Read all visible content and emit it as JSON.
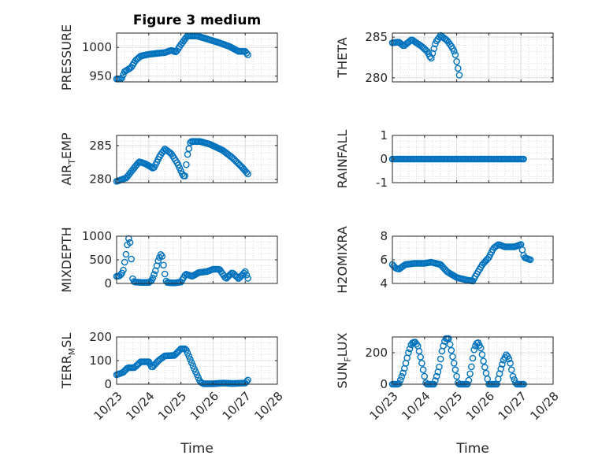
{
  "figure": {
    "title": "Figure 3 medium",
    "xlabel": "Time",
    "marker_color": "#0072BD",
    "xticks": [
      {
        "value": 0,
        "label": "10/23"
      },
      {
        "value": 1,
        "label": "10/24"
      },
      {
        "value": 2,
        "label": "10/25"
      },
      {
        "value": 3,
        "label": "10/26"
      },
      {
        "value": 4,
        "label": "10/27"
      },
      {
        "value": 5,
        "label": "10/28"
      }
    ]
  },
  "chart_data": [
    {
      "type": "scatter",
      "ylabel": "PRESSURE",
      "ylim": [
        940,
        1025
      ],
      "yticks": [
        950,
        1000
      ],
      "x_ticklabels_shown": false,
      "title": "Figure 3 medium",
      "key": [
        [
          0,
          945
        ],
        [
          0.15,
          945
        ],
        [
          0.25,
          958
        ],
        [
          0.45,
          965
        ],
        [
          0.6,
          978
        ],
        [
          0.75,
          985
        ],
        [
          1.0,
          988
        ],
        [
          1.3,
          990
        ],
        [
          1.5,
          991
        ],
        [
          1.7,
          995
        ],
        [
          1.85,
          992
        ],
        [
          2.0,
          1005
        ],
        [
          2.2,
          1020
        ],
        [
          2.5,
          1020
        ],
        [
          2.8,
          1015
        ],
        [
          3.2,
          1008
        ],
        [
          3.5,
          1002
        ],
        [
          3.8,
          993
        ],
        [
          4.0,
          993
        ],
        [
          4.1,
          986
        ]
      ]
    },
    {
      "type": "scatter",
      "ylabel": "THETA",
      "ylim": [
        279.5,
        285.5
      ],
      "yticks": [
        280,
        285
      ],
      "x_ticklabels_shown": false,
      "key": [
        [
          0,
          284.3
        ],
        [
          0.2,
          284.4
        ],
        [
          0.35,
          283.9
        ],
        [
          0.6,
          284.7
        ],
        [
          0.9,
          283.9
        ],
        [
          1.1,
          283.2
        ],
        [
          1.2,
          282.3
        ],
        [
          1.35,
          284.4
        ],
        [
          1.5,
          285.2
        ],
        [
          1.7,
          284.6
        ],
        [
          1.85,
          283.8
        ],
        [
          1.95,
          283
        ],
        [
          2.05,
          281
        ],
        [
          2.1,
          280
        ]
      ]
    },
    {
      "type": "scatter",
      "ylabel": "AIR_TEMP",
      "ylim": [
        279.5,
        286.5
      ],
      "yticks": [
        280,
        285
      ],
      "x_ticklabels_shown": false,
      "key": [
        [
          0,
          279.7
        ],
        [
          0.3,
          280.2
        ],
        [
          0.55,
          281.7
        ],
        [
          0.7,
          282.6
        ],
        [
          0.9,
          282.3
        ],
        [
          1.15,
          281.6
        ],
        [
          1.35,
          283.5
        ],
        [
          1.5,
          284.5
        ],
        [
          1.7,
          283.8
        ],
        [
          1.9,
          282.3
        ],
        [
          2.05,
          280.7
        ],
        [
          2.12,
          280.3
        ],
        [
          2.2,
          283.5
        ],
        [
          2.3,
          285.6
        ],
        [
          2.6,
          285.6
        ],
        [
          2.9,
          285.2
        ],
        [
          3.3,
          284.3
        ],
        [
          3.6,
          283.2
        ],
        [
          3.9,
          281.8
        ],
        [
          4.1,
          280.7
        ]
      ]
    },
    {
      "type": "scatter",
      "ylabel": "RAINFALL",
      "ylim": [
        -1,
        1
      ],
      "yticks": [
        -1,
        0,
        1
      ],
      "x_ticklabels_shown": false,
      "key": [
        [
          0,
          0
        ],
        [
          4.1,
          0
        ]
      ]
    },
    {
      "type": "scatter",
      "ylabel": "MIXDEPTH",
      "ylim": [
        0,
        1000
      ],
      "yticks": [
        0,
        500,
        1000
      ],
      "x_ticklabels_shown": false,
      "key": [
        [
          0,
          150
        ],
        [
          0.1,
          160
        ],
        [
          0.2,
          250
        ],
        [
          0.3,
          650
        ],
        [
          0.35,
          900
        ],
        [
          0.4,
          1000
        ],
        [
          0.45,
          600
        ],
        [
          0.5,
          100
        ],
        [
          0.55,
          30
        ],
        [
          0.8,
          20
        ],
        [
          1.0,
          20
        ],
        [
          1.1,
          70
        ],
        [
          1.2,
          250
        ],
        [
          1.3,
          500
        ],
        [
          1.4,
          650
        ],
        [
          1.5,
          200
        ],
        [
          1.55,
          20
        ],
        [
          1.8,
          10
        ],
        [
          2.0,
          30
        ],
        [
          2.15,
          200
        ],
        [
          2.35,
          150
        ],
        [
          2.55,
          230
        ],
        [
          2.8,
          250
        ],
        [
          3.0,
          300
        ],
        [
          3.2,
          300
        ],
        [
          3.4,
          100
        ],
        [
          3.6,
          230
        ],
        [
          3.8,
          100
        ],
        [
          4.0,
          250
        ],
        [
          4.1,
          80
        ]
      ]
    },
    {
      "type": "scatter",
      "ylabel": "H2OMIXRA",
      "ylim": [
        4,
        8
      ],
      "yticks": [
        4,
        6,
        8
      ],
      "x_ticklabels_shown": false,
      "key": [
        [
          0,
          5.6
        ],
        [
          0.1,
          5.3
        ],
        [
          0.2,
          5.2
        ],
        [
          0.4,
          5.6
        ],
        [
          0.7,
          5.7
        ],
        [
          1.0,
          5.7
        ],
        [
          1.2,
          5.8
        ],
        [
          1.5,
          5.6
        ],
        [
          1.7,
          5.0
        ],
        [
          2.0,
          4.5
        ],
        [
          2.3,
          4.3
        ],
        [
          2.5,
          4.2
        ],
        [
          2.6,
          4.7
        ],
        [
          2.8,
          5.6
        ],
        [
          3.0,
          6.2
        ],
        [
          3.15,
          7.0
        ],
        [
          3.3,
          7.3
        ],
        [
          3.5,
          7.1
        ],
        [
          3.8,
          7.1
        ],
        [
          4.0,
          7.3
        ],
        [
          4.1,
          6.2
        ],
        [
          4.3,
          6.0
        ]
      ]
    },
    {
      "type": "scatter",
      "ylabel": "TERR_MSL",
      "ylim": [
        0,
        200
      ],
      "yticks": [
        0,
        100,
        200
      ],
      "x_ticklabels_shown": true,
      "key": [
        [
          0,
          40
        ],
        [
          0.2,
          50
        ],
        [
          0.35,
          70
        ],
        [
          0.55,
          70
        ],
        [
          0.75,
          95
        ],
        [
          1.0,
          95
        ],
        [
          1.1,
          70
        ],
        [
          1.3,
          100
        ],
        [
          1.5,
          120
        ],
        [
          1.8,
          122
        ],
        [
          2.0,
          150
        ],
        [
          2.15,
          150
        ],
        [
          2.4,
          70
        ],
        [
          2.6,
          10
        ],
        [
          2.7,
          2
        ],
        [
          3.0,
          2
        ],
        [
          3.3,
          5
        ],
        [
          3.6,
          3
        ],
        [
          4.0,
          5
        ],
        [
          4.1,
          20
        ]
      ]
    },
    {
      "type": "scatter",
      "ylabel": "SUN_FLUX",
      "ylim": [
        0,
        300
      ],
      "yticks": [
        0,
        200
      ],
      "x_ticklabels_shown": true,
      "key": [
        [
          0,
          0
        ],
        [
          0.2,
          0
        ],
        [
          0.35,
          80
        ],
        [
          0.5,
          200
        ],
        [
          0.6,
          260
        ],
        [
          0.7,
          270
        ],
        [
          0.8,
          240
        ],
        [
          0.9,
          150
        ],
        [
          1.0,
          50
        ],
        [
          1.05,
          0
        ],
        [
          1.3,
          0
        ],
        [
          1.45,
          100
        ],
        [
          1.55,
          220
        ],
        [
          1.65,
          290
        ],
        [
          1.75,
          290
        ],
        [
          1.85,
          200
        ],
        [
          1.95,
          100
        ],
        [
          2.05,
          0
        ],
        [
          2.35,
          0
        ],
        [
          2.45,
          100
        ],
        [
          2.55,
          230
        ],
        [
          2.65,
          270
        ],
        [
          2.75,
          230
        ],
        [
          2.85,
          130
        ],
        [
          2.95,
          40
        ],
        [
          3.0,
          0
        ],
        [
          3.25,
          0
        ],
        [
          3.35,
          80
        ],
        [
          3.45,
          150
        ],
        [
          3.55,
          190
        ],
        [
          3.65,
          150
        ],
        [
          3.75,
          50
        ],
        [
          3.85,
          0
        ],
        [
          4.1,
          0
        ]
      ]
    }
  ]
}
